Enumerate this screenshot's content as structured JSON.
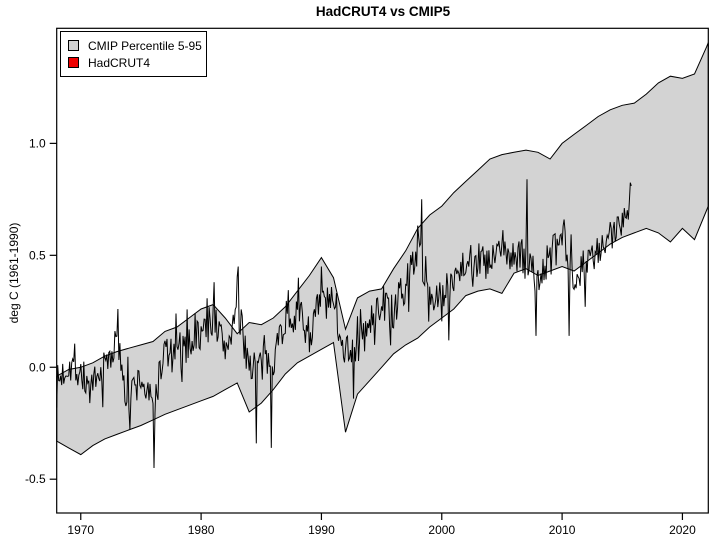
{
  "title": "HadCRUT4 vs CMIP5",
  "ylabel": "deg C (1961-1990)",
  "legend": {
    "items": [
      {
        "label": "CMIP Percentile 5-95",
        "color": "#D3D3D3"
      },
      {
        "label": "HadCRUT4",
        "color": "#EE0000"
      }
    ]
  },
  "colors": {
    "background": "#FFFFFF",
    "frame": "#000000",
    "band_fill": "#D3D3D3",
    "band_edge": "#000000",
    "line": "#000000"
  },
  "chart_data": {
    "type": "area",
    "title": "HadCRUT4 vs CMIP5",
    "xlabel": "",
    "ylabel": "deg C (1961-1990)",
    "x_domain": [
      1968.0,
      2022.15
    ],
    "y_domain": [
      -0.651,
      1.514
    ],
    "x_ticks": [
      {
        "v": 1970,
        "label": "1970"
      },
      {
        "v": 1980,
        "label": "1980"
      },
      {
        "v": 1990,
        "label": "1990"
      },
      {
        "v": 2000,
        "label": "2000"
      },
      {
        "v": 2010,
        "label": "2010"
      },
      {
        "v": 2020,
        "label": "2020"
      }
    ],
    "y_ticks": [
      {
        "v": -0.5,
        "label": "-0.5"
      },
      {
        "v": 0.0,
        "label": "0.0"
      },
      {
        "v": 0.5,
        "label": "0.5"
      },
      {
        "v": 1.0,
        "label": "1.0"
      }
    ],
    "grid": false,
    "legend_position": "top-left",
    "band": {
      "name": "CMIP Percentile 5-95",
      "years": [
        1968,
        1969,
        1970,
        1971,
        1972,
        1973,
        1974,
        1975,
        1976,
        1977,
        1978,
        1979,
        1980,
        1981,
        1982,
        1983,
        1984,
        1985,
        1986,
        1987,
        1988,
        1989,
        1990,
        1991,
        1992,
        1993,
        1994,
        1995,
        1996,
        1997,
        1998,
        1999,
        2000,
        2001,
        2002,
        2003,
        2004,
        2005,
        2006,
        2007,
        2008,
        2009,
        2010,
        2011,
        2012,
        2013,
        2014,
        2015,
        2016,
        2017,
        2018,
        2019,
        2020,
        2021,
        2022,
        2022.15
      ],
      "upper": [
        -0.04,
        -0.01,
        0.0,
        0.02,
        0.05,
        0.07,
        0.085,
        0.1,
        0.115,
        0.16,
        0.18,
        0.22,
        0.26,
        0.28,
        0.22,
        0.15,
        0.2,
        0.19,
        0.22,
        0.27,
        0.34,
        0.41,
        0.49,
        0.4,
        0.17,
        0.31,
        0.34,
        0.35,
        0.44,
        0.52,
        0.62,
        0.68,
        0.72,
        0.78,
        0.83,
        0.88,
        0.93,
        0.95,
        0.96,
        0.97,
        0.96,
        0.93,
        1.0,
        1.04,
        1.08,
        1.12,
        1.15,
        1.17,
        1.18,
        1.22,
        1.27,
        1.3,
        1.29,
        1.31,
        1.43,
        1.45
      ],
      "lower": [
        -0.33,
        -0.36,
        -0.39,
        -0.35,
        -0.32,
        -0.3,
        -0.28,
        -0.26,
        -0.235,
        -0.21,
        -0.19,
        -0.17,
        -0.15,
        -0.13,
        -0.1,
        -0.07,
        -0.2,
        -0.16,
        -0.1,
        -0.03,
        0.02,
        0.05,
        0.08,
        0.11,
        -0.29,
        -0.12,
        -0.06,
        0.0,
        0.06,
        0.1,
        0.13,
        0.18,
        0.22,
        0.26,
        0.32,
        0.34,
        0.35,
        0.33,
        0.42,
        0.44,
        0.41,
        0.43,
        0.45,
        0.43,
        0.47,
        0.51,
        0.55,
        0.58,
        0.6,
        0.62,
        0.6,
        0.56,
        0.62,
        0.57,
        0.7,
        0.72
      ]
    },
    "line": {
      "name": "HadCRUT4",
      "resolution": "monthly",
      "start": 1968.0,
      "end": 2015.75,
      "annual_years": [
        1968,
        1969,
        1970,
        1971,
        1972,
        1973,
        1974,
        1975,
        1976,
        1977,
        1978,
        1979,
        1980,
        1981,
        1982,
        1983,
        1984,
        1985,
        1986,
        1987,
        1988,
        1989,
        1990,
        1991,
        1992,
        1993,
        1994,
        1995,
        1996,
        1997,
        1998,
        1999,
        2000,
        2001,
        2002,
        2003,
        2004,
        2005,
        2006,
        2007,
        2008,
        2009,
        2010,
        2011,
        2012,
        2013,
        2014,
        2015,
        2016
      ],
      "annual_means": [
        -0.08,
        0.02,
        -0.02,
        -0.12,
        0.0,
        0.12,
        -0.13,
        -0.05,
        -0.18,
        0.08,
        0.02,
        0.12,
        0.15,
        0.22,
        0.08,
        0.25,
        0.02,
        0.0,
        0.05,
        0.22,
        0.25,
        0.15,
        0.3,
        0.27,
        0.08,
        0.1,
        0.18,
        0.3,
        0.22,
        0.36,
        0.55,
        0.32,
        0.29,
        0.42,
        0.48,
        0.48,
        0.45,
        0.54,
        0.48,
        0.49,
        0.39,
        0.49,
        0.56,
        0.42,
        0.47,
        0.5,
        0.57,
        0.68,
        0.8
      ],
      "notable_points": [
        [
          1968.0,
          -0.18
        ],
        [
          1973.1,
          0.26
        ],
        [
          1974.1,
          -0.28
        ],
        [
          1976.1,
          -0.45
        ],
        [
          1977.9,
          0.24
        ],
        [
          1981.1,
          0.38
        ],
        [
          1983.1,
          0.45
        ],
        [
          1984.6,
          -0.34
        ],
        [
          1985.8,
          -0.36
        ],
        [
          1988.1,
          0.4
        ],
        [
          1990.0,
          0.45
        ],
        [
          1992.7,
          -0.14
        ],
        [
          1998.3,
          0.75
        ],
        [
          2000.6,
          0.12
        ],
        [
          2007.1,
          0.84
        ],
        [
          2007.8,
          0.14
        ],
        [
          2010.2,
          0.66
        ],
        [
          2010.6,
          0.14
        ],
        [
          2011.9,
          0.27
        ],
        [
          2015.75,
          0.81
        ]
      ],
      "noise_amp": 0.085,
      "seed": 7
    }
  }
}
